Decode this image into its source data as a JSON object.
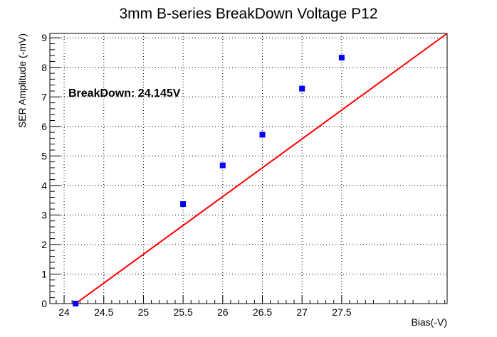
{
  "chart_data": {
    "type": "scatter",
    "title": "3mm B-series BreakDown Voltage P12",
    "xlabel": "Bias(-V)",
    "ylabel": "SER Amplitude (-mV)",
    "annotation": "BreakDown: 24.145V",
    "xlim": [
      23.82,
      28.83
    ],
    "ylim": [
      0,
      9.15
    ],
    "x_ticks": [
      24,
      24.5,
      25,
      25.5,
      26,
      26.5,
      27,
      27.5
    ],
    "x_tick_labels": [
      "24",
      "24.5",
      "25",
      "25.5",
      "26",
      "26.5",
      "27",
      "27.5"
    ],
    "y_ticks": [
      0,
      1,
      2,
      3,
      4,
      5,
      6,
      7,
      8,
      9
    ],
    "y_tick_labels": [
      "0",
      "1",
      "2",
      "3",
      "4",
      "5",
      "6",
      "7",
      "8",
      "9"
    ],
    "grid": true,
    "series": [
      {
        "x": [
          24.145,
          25.5,
          26.0,
          26.5,
          27.0,
          27.5
        ],
        "y": [
          0.0,
          3.37,
          4.68,
          5.72,
          7.28,
          8.33
        ],
        "color": "#0000ff",
        "marker": "square"
      }
    ],
    "fit": {
      "type": "line",
      "color": "#ff0000",
      "x": [
        24.145,
        28.83
      ],
      "y": [
        0.0,
        9.15
      ]
    }
  }
}
